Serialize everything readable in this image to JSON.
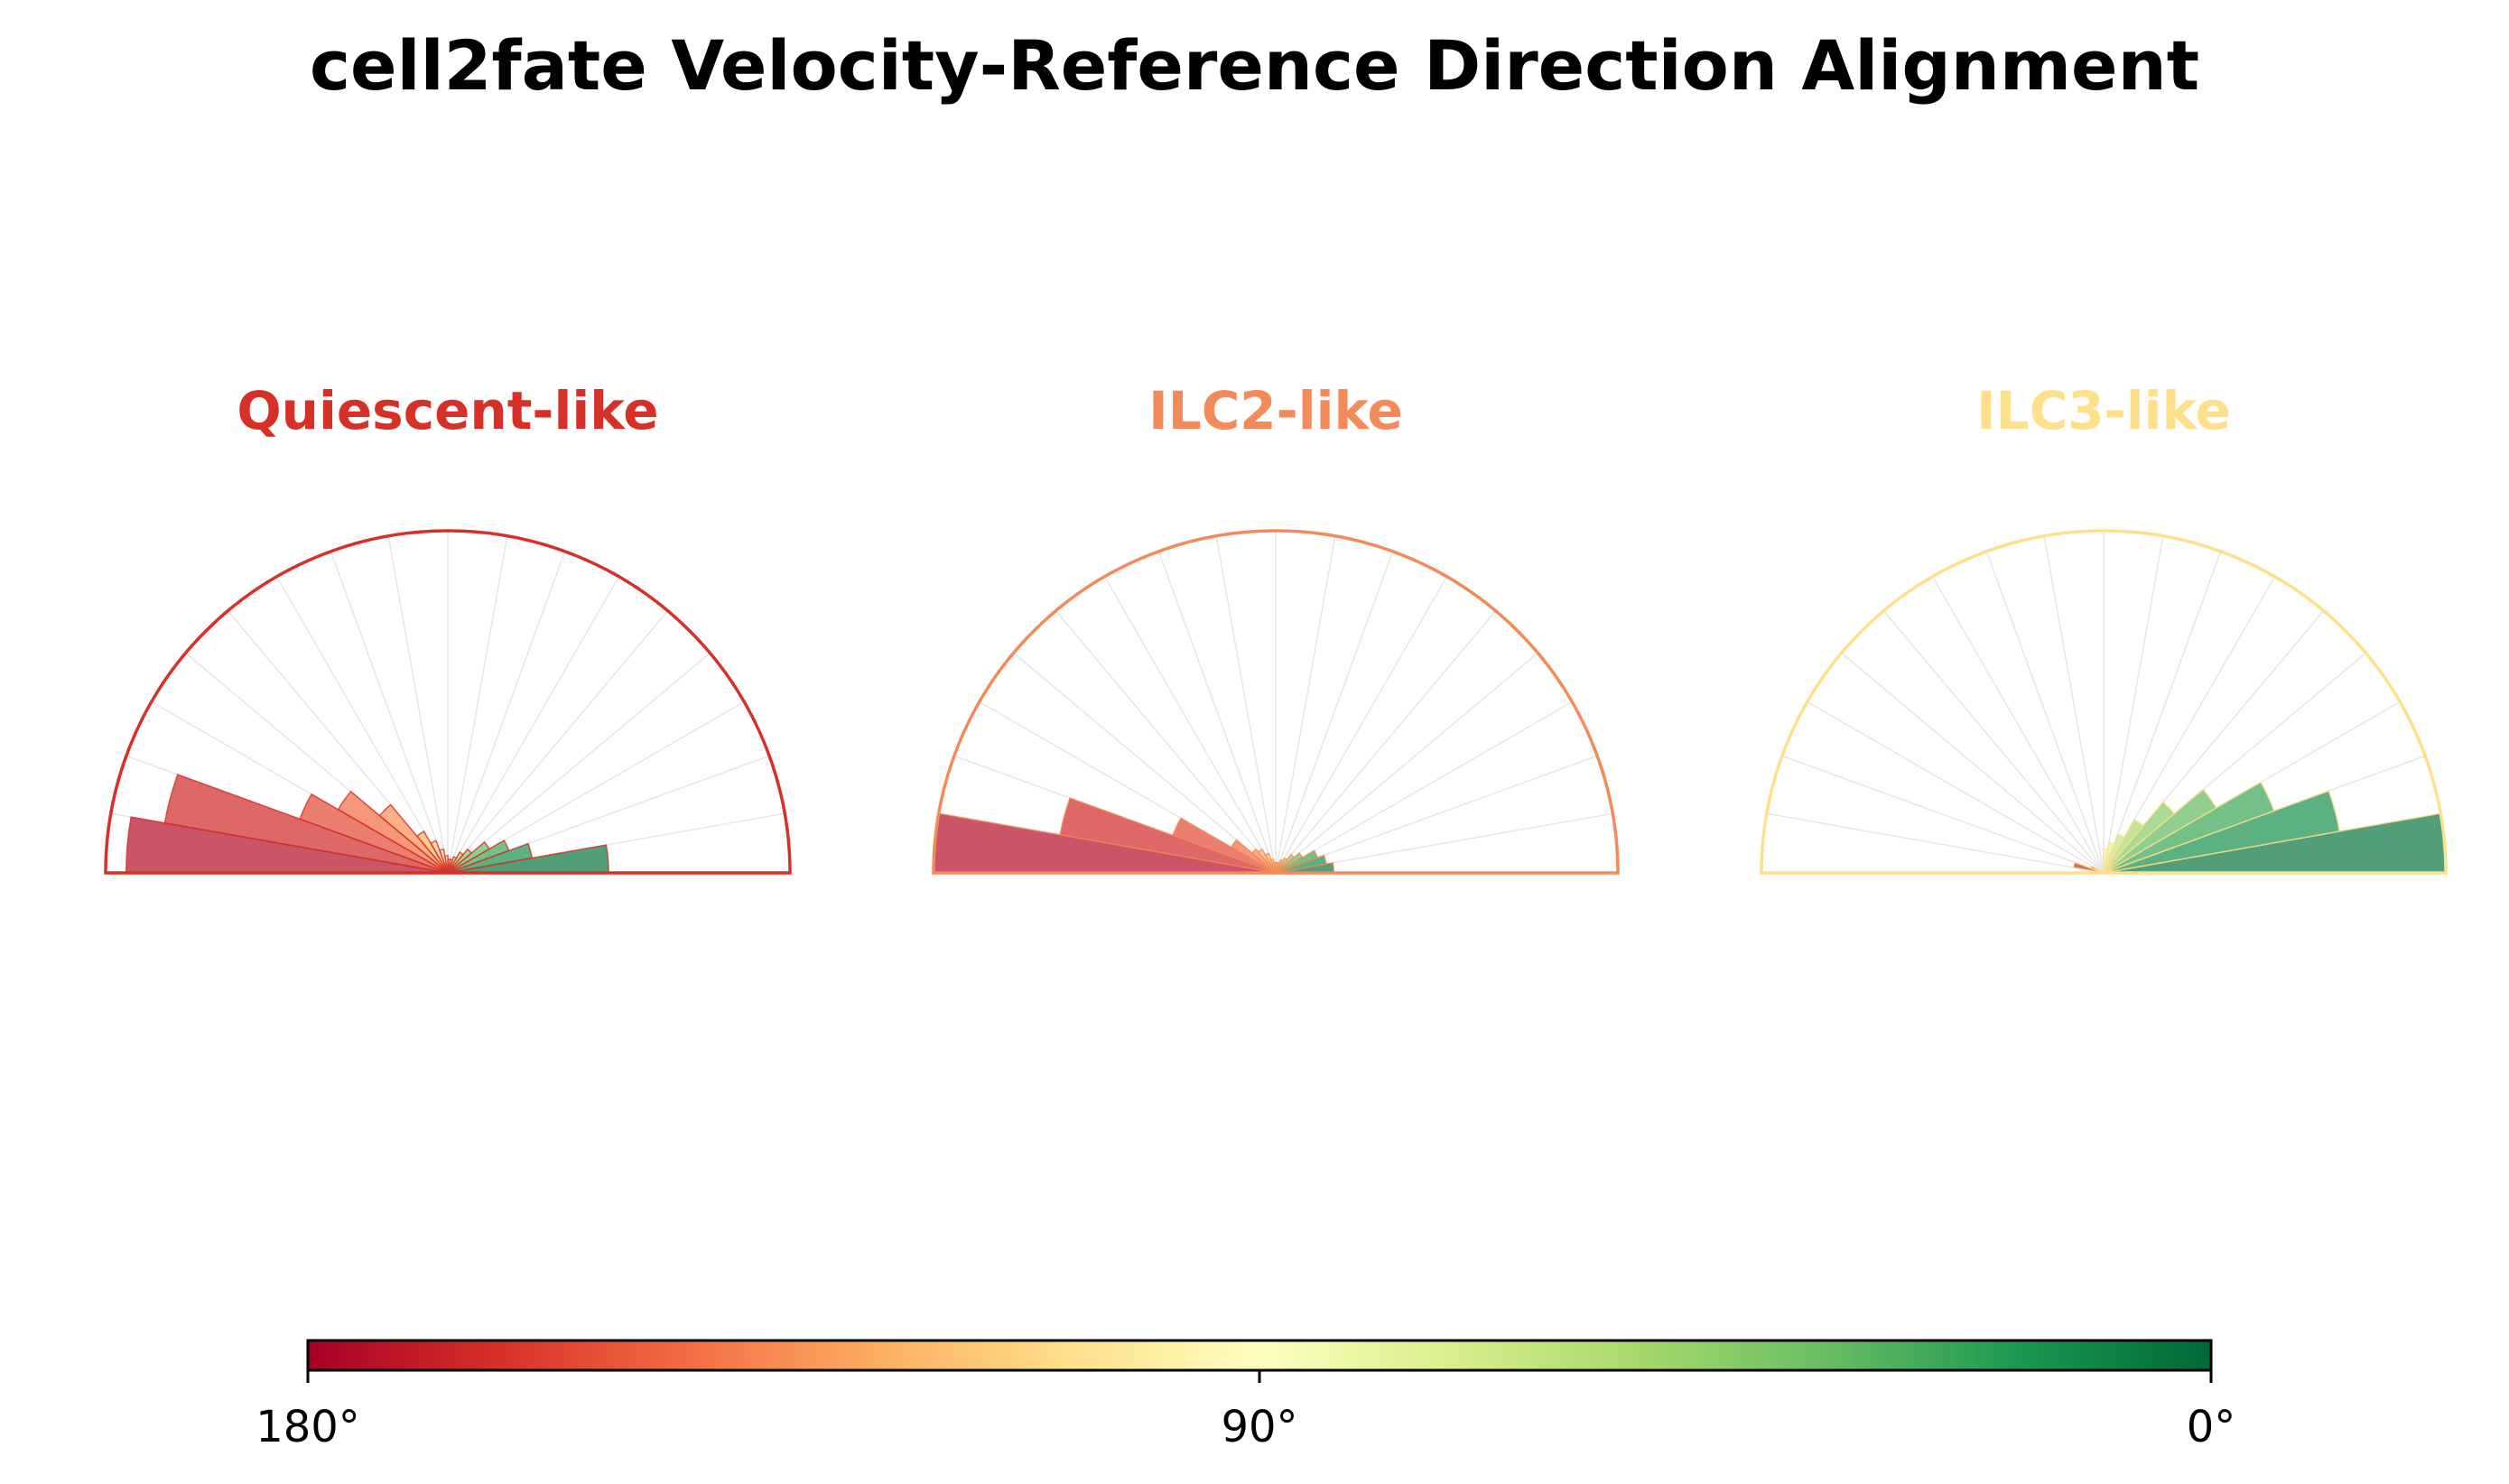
{
  "title": "cell2fate Velocity-Reference Direction Alignment",
  "chart_data": [
    {
      "type": "polar-bar",
      "title": "Quiescent-like",
      "title_color": "#d73027",
      "theta_range_deg": [
        0,
        180
      ],
      "bin_width_deg": 10,
      "r_max": 1.0,
      "bins": [
        {
          "angle_deg": 5,
          "value": 0.47
        },
        {
          "angle_deg": 15,
          "value": 0.25
        },
        {
          "angle_deg": 25,
          "value": 0.19
        },
        {
          "angle_deg": 35,
          "value": 0.14
        },
        {
          "angle_deg": 45,
          "value": 0.09
        },
        {
          "angle_deg": 55,
          "value": 0.07
        },
        {
          "angle_deg": 65,
          "value": 0.05
        },
        {
          "angle_deg": 75,
          "value": 0.04
        },
        {
          "angle_deg": 85,
          "value": 0.04
        },
        {
          "angle_deg": 95,
          "value": 0.05
        },
        {
          "angle_deg": 105,
          "value": 0.07
        },
        {
          "angle_deg": 115,
          "value": 0.1
        },
        {
          "angle_deg": 125,
          "value": 0.14
        },
        {
          "angle_deg": 135,
          "value": 0.26
        },
        {
          "angle_deg": 145,
          "value": 0.37
        },
        {
          "angle_deg": 155,
          "value": 0.46
        },
        {
          "angle_deg": 165,
          "value": 0.84
        },
        {
          "angle_deg": 175,
          "value": 0.94
        }
      ]
    },
    {
      "type": "polar-bar",
      "title": "ILC2-like",
      "title_color": "#f4895a",
      "theta_range_deg": [
        0,
        180
      ],
      "bin_width_deg": 10,
      "r_max": 1.0,
      "bins": [
        {
          "angle_deg": 5,
          "value": 0.17
        },
        {
          "angle_deg": 15,
          "value": 0.15
        },
        {
          "angle_deg": 25,
          "value": 0.13
        },
        {
          "angle_deg": 35,
          "value": 0.09
        },
        {
          "angle_deg": 45,
          "value": 0.07
        },
        {
          "angle_deg": 55,
          "value": 0.05
        },
        {
          "angle_deg": 65,
          "value": 0.04
        },
        {
          "angle_deg": 75,
          "value": 0.03
        },
        {
          "angle_deg": 85,
          "value": 0.03
        },
        {
          "angle_deg": 95,
          "value": 0.03
        },
        {
          "angle_deg": 105,
          "value": 0.04
        },
        {
          "angle_deg": 115,
          "value": 0.06
        },
        {
          "angle_deg": 125,
          "value": 0.08
        },
        {
          "angle_deg": 135,
          "value": 0.09
        },
        {
          "angle_deg": 145,
          "value": 0.15
        },
        {
          "angle_deg": 155,
          "value": 0.32
        },
        {
          "angle_deg": 165,
          "value": 0.64
        },
        {
          "angle_deg": 175,
          "value": 1.0
        }
      ]
    },
    {
      "type": "polar-bar",
      "title": "ILC3-like",
      "title_color": "#fee08b",
      "theta_range_deg": [
        0,
        180
      ],
      "bin_width_deg": 10,
      "r_max": 1.0,
      "bins": [
        {
          "angle_deg": 5,
          "value": 1.0
        },
        {
          "angle_deg": 15,
          "value": 0.7
        },
        {
          "angle_deg": 25,
          "value": 0.53
        },
        {
          "angle_deg": 35,
          "value": 0.38
        },
        {
          "angle_deg": 45,
          "value": 0.27
        },
        {
          "angle_deg": 55,
          "value": 0.18
        },
        {
          "angle_deg": 65,
          "value": 0.12
        },
        {
          "angle_deg": 75,
          "value": 0.09
        },
        {
          "angle_deg": 85,
          "value": 0.07
        },
        {
          "angle_deg": 95,
          "value": 0.0
        },
        {
          "angle_deg": 105,
          "value": 0.0
        },
        {
          "angle_deg": 115,
          "value": 0.0
        },
        {
          "angle_deg": 125,
          "value": 0.0
        },
        {
          "angle_deg": 135,
          "value": 0.0
        },
        {
          "angle_deg": 145,
          "value": 0.0
        },
        {
          "angle_deg": 155,
          "value": 0.04
        },
        {
          "angle_deg": 165,
          "value": 0.09
        },
        {
          "angle_deg": 175,
          "value": 0.0
        }
      ]
    }
  ],
  "colorbar": {
    "colormap": "RdYlGn",
    "tick_labels": [
      "180°",
      "90°",
      "0°"
    ],
    "range_deg": [
      180,
      0
    ],
    "stops": [
      "#a50026",
      "#d73027",
      "#f46d43",
      "#fdae61",
      "#fee08b",
      "#ffffbf",
      "#d9ef8b",
      "#a6d96a",
      "#66bd63",
      "#1a9850",
      "#006837"
    ]
  }
}
